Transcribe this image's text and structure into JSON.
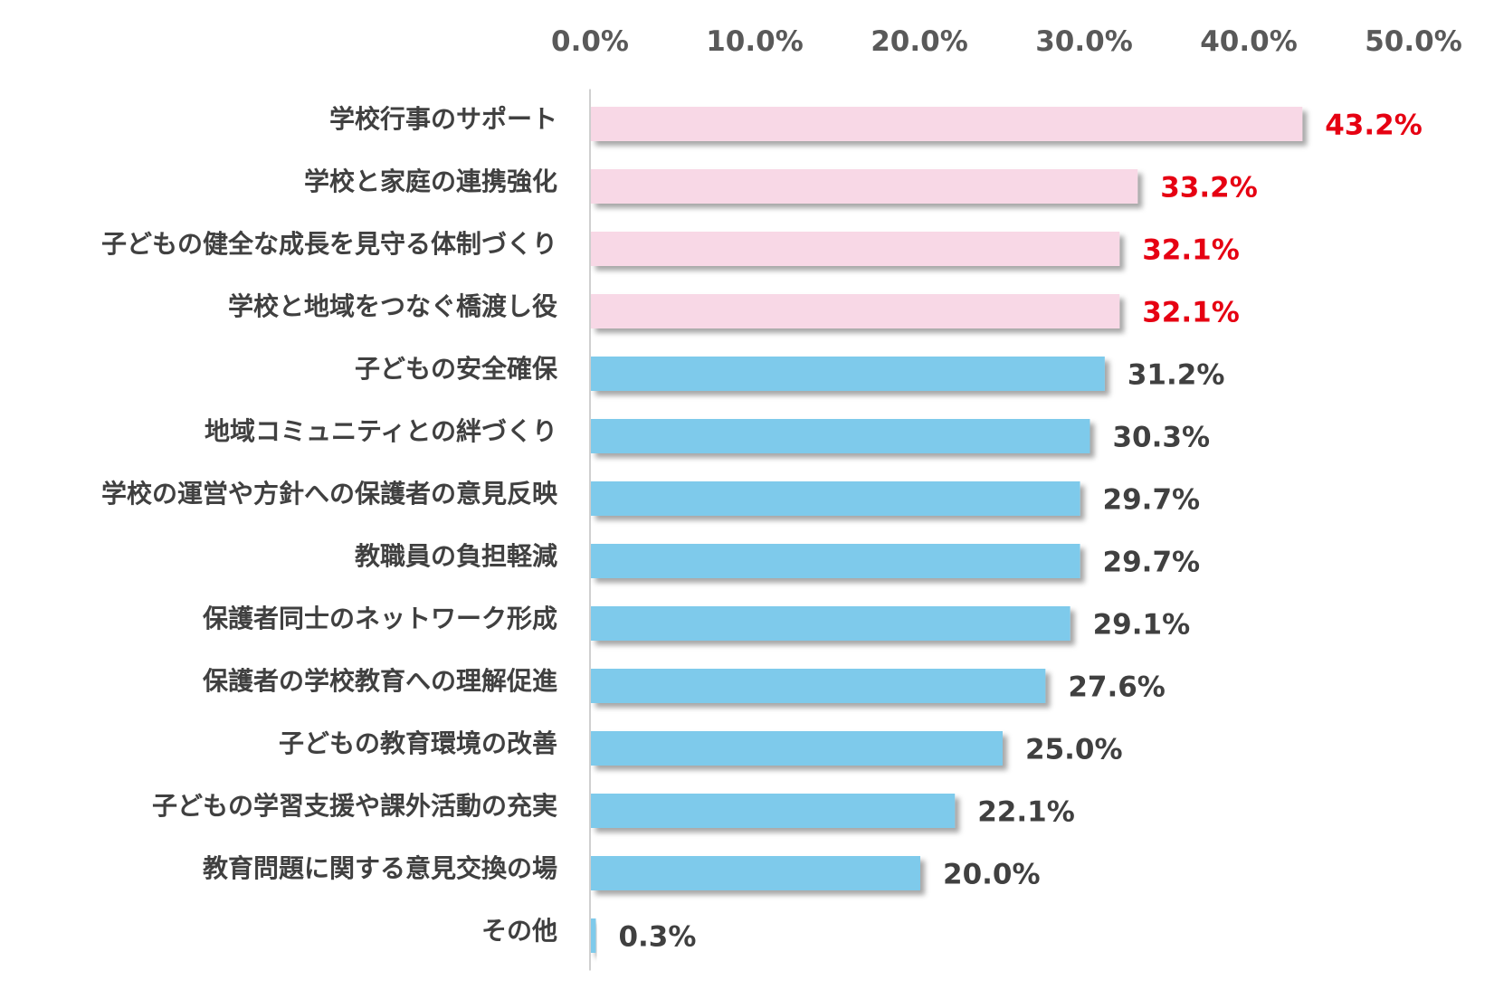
{
  "colors": {
    "highlight_bar": "#f8d8e6",
    "normal_bar": "#7ecaeb",
    "highlight_label": "#e60012",
    "normal_label": "#404040",
    "axis": "#d0d0d0"
  },
  "chart_data": {
    "type": "bar",
    "orientation": "horizontal",
    "title": "",
    "xlabel": "",
    "ylabel": "",
    "xlim": [
      0,
      50
    ],
    "grid": false,
    "ticks": [
      "0.0%",
      "10.0%",
      "20.0%",
      "30.0%",
      "40.0%",
      "50.0%"
    ],
    "tick_values": [
      0,
      10,
      20,
      30,
      40,
      50
    ],
    "categories": [
      "学校行事のサポート",
      "学校と家庭の連携強化",
      "子どもの健全な成長を見守る体制づくり",
      "学校と地域をつなぐ橋渡し役",
      "子どもの安全確保",
      "地域コミュニティとの絆づくり",
      "学校の運営や方針への保護者の意見反映",
      "教職員の負担軽減",
      "保護者同士のネットワーク形成",
      "保護者の学校教育への理解促進",
      "子どもの教育環境の改善",
      "子どもの学習支援や課外活動の充実",
      "教育問題に関する意見交換の場",
      "その他"
    ],
    "values": [
      43.2,
      33.2,
      32.1,
      32.1,
      31.2,
      30.3,
      29.7,
      29.7,
      29.1,
      27.6,
      25.0,
      22.1,
      20.0,
      0.3
    ],
    "value_labels": [
      "43.2%",
      "33.2%",
      "32.1%",
      "32.1%",
      "31.2%",
      "30.3%",
      "29.7%",
      "29.7%",
      "29.1%",
      "27.6%",
      "25.0%",
      "22.1%",
      "20.0%",
      "0.3%"
    ],
    "highlighted": [
      true,
      true,
      true,
      true,
      false,
      false,
      false,
      false,
      false,
      false,
      false,
      false,
      false,
      false
    ]
  }
}
